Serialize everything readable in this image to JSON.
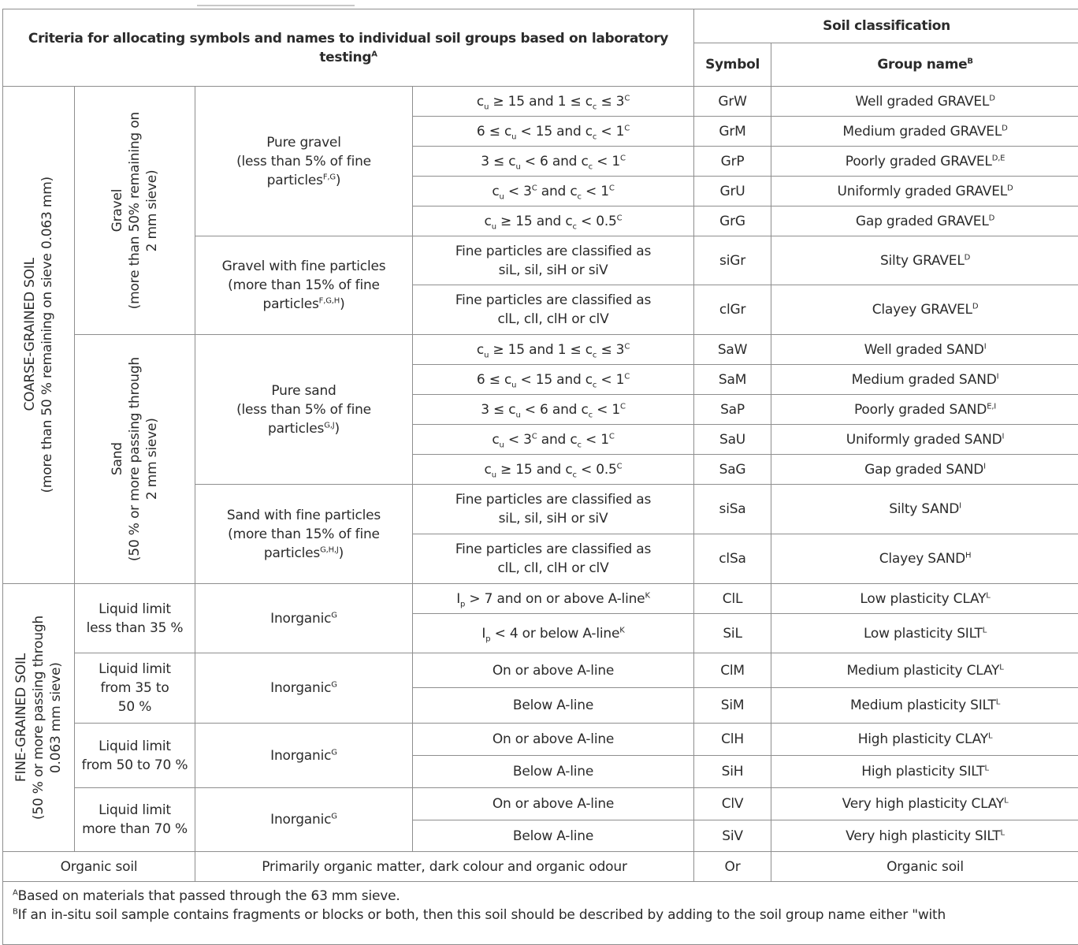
{
  "header": {
    "criteria": "Criteria for allocating symbols and names to individual soil groups based on laboratory testing",
    "criteria_sup": "A",
    "soil_classification": "Soil classification",
    "symbol": "Symbol",
    "group_name": "Group name",
    "group_name_sup": "B"
  },
  "coarse": {
    "label": "COARSE-GRAINED SOIL",
    "sub": "(more than 50 % remaining on sieve 0.063 mm)",
    "gravel": {
      "label": "Gravel",
      "sub1": "(more than 50% remaining on",
      "sub2": "2 mm sieve)",
      "pure": {
        "l1": "Pure gravel",
        "l2": "(less than 5% of fine",
        "l3": "particles",
        "sup": "F,G",
        "close": ")"
      },
      "fines": {
        "l1": "Gravel with fine particles",
        "l2": "(more than 15% of fine",
        "l3": "particles",
        "sup": "F,G,H",
        "close": ")"
      }
    },
    "sand": {
      "label": "Sand",
      "sub1": "(50 % or more passing through",
      "sub2": "2 mm sieve)",
      "pure": {
        "l1": "Pure sand",
        "l2": "(less than 5% of fine",
        "l3": "particles",
        "sup": "G,J",
        "close": ")"
      },
      "fines": {
        "l1": "Sand with fine particles",
        "l2": "(more than 15% of fine",
        "l3": "particles",
        "sup": "G,H,J",
        "close": ")"
      }
    }
  },
  "grading": {
    "r1": [
      "c",
      "u",
      " ≥ 15 and 1 ≤ c",
      "c",
      " ≤ 3",
      "C"
    ],
    "r2": [
      "6 ≤ c",
      "u",
      " < 15 and c",
      "c",
      " < 1",
      "C"
    ],
    "r3": [
      "3 ≤ c",
      "u",
      " < 6 and c",
      "c",
      " < 1",
      "C"
    ],
    "r4": [
      "c",
      "u",
      " < 3",
      "C",
      " and c",
      "c",
      " < 1",
      "C"
    ],
    "r5": [
      "c",
      "u",
      " ≥ 15 and c",
      "c",
      " < 0.5",
      "C"
    ]
  },
  "fines_criteria": {
    "silt_l1": "Fine particles are classified as",
    "silt_l2": "siL, sil, siH or siV",
    "clay_l1": "Fine particles are classified as",
    "clay_l2": "clL, clI, clH or clV"
  },
  "gravel_rows": [
    {
      "symbol": "GrW",
      "name": "Well graded GRAVEL",
      "sup": "D"
    },
    {
      "symbol": "GrM",
      "name": "Medium graded GRAVEL",
      "sup": "D"
    },
    {
      "symbol": "GrP",
      "name": "Poorly graded GRAVEL",
      "sup": "D,E"
    },
    {
      "symbol": "GrU",
      "name": "Uniformly graded GRAVEL",
      "sup": "D"
    },
    {
      "symbol": "GrG",
      "name": "Gap graded GRAVEL",
      "sup": "D"
    },
    {
      "symbol": "siGr",
      "name": "Silty GRAVEL",
      "sup": "D"
    },
    {
      "symbol": "clGr",
      "name": "Clayey GRAVEL",
      "sup": "D"
    }
  ],
  "sand_rows": [
    {
      "symbol": "SaW",
      "name": "Well graded SAND",
      "sup": "I"
    },
    {
      "symbol": "SaM",
      "name": "Medium graded SAND",
      "sup": "I"
    },
    {
      "symbol": "SaP",
      "name": "Poorly graded SAND",
      "sup": "E,I"
    },
    {
      "symbol": "SaU",
      "name": "Uniformly graded SAND",
      "sup": "I"
    },
    {
      "symbol": "SaG",
      "name": "Gap graded SAND",
      "sup": "I"
    },
    {
      "symbol": "siSa",
      "name": "Silty SAND",
      "sup": "I"
    },
    {
      "symbol": "clSa",
      "name": "Clayey SAND",
      "sup": "H"
    }
  ],
  "fine": {
    "label": "FINE-GRAINED SOIL",
    "sub1": "(50 % or more passing through",
    "sub2": "0.063 mm sieve)",
    "inorganic": "Inorganic",
    "inorganic_sup": "G",
    "groups": [
      {
        "limit_l1": "Liquid limit",
        "limit_l2": "less than 35 %",
        "rows": [
          {
            "crit_a": "I",
            "crit_sub": "p",
            "crit_b": " > 7 and on or above A-line",
            "crit_sup": "K",
            "symbol": "ClL",
            "name": "Low plasticity CLAY",
            "sup": "L"
          },
          {
            "crit_a": "I",
            "crit_sub": "p",
            "crit_b": " < 4 or below A-line",
            "crit_sup": "K",
            "symbol": "SiL",
            "name": "Low plasticity SILT",
            "sup": "L"
          }
        ]
      },
      {
        "limit_l1": "Liquid limit",
        "limit_l2": "from 35 to",
        "limit_l3": "50 %",
        "rows": [
          {
            "crit": "On or above A-line",
            "symbol": "ClM",
            "name": "Medium plasticity CLAY",
            "sup": "L"
          },
          {
            "crit": "Below A-line",
            "symbol": "SiM",
            "name": "Medium plasticity SILT",
            "sup": "L"
          }
        ]
      },
      {
        "limit_l1": "Liquid limit",
        "limit_l2": "from 50 to 70 %",
        "rows": [
          {
            "crit": "On or above A-line",
            "symbol": "ClH",
            "name": "High plasticity CLAY",
            "sup": "L"
          },
          {
            "crit": "Below A-line",
            "symbol": "SiH",
            "name": "High plasticity SILT",
            "sup": "L"
          }
        ]
      },
      {
        "limit_l1": "Liquid limit",
        "limit_l2": "more than 70 %",
        "rows": [
          {
            "crit": "On or above A-line",
            "symbol": "ClV",
            "name": "Very high plasticity CLAY",
            "sup": "L"
          },
          {
            "crit": "Below A-line",
            "symbol": "SiV",
            "name": "Very high plasticity SILT",
            "sup": "L"
          }
        ]
      }
    ]
  },
  "organic": {
    "label": "Organic soil",
    "criteria": "Primarily organic matter, dark colour and organic odour",
    "symbol": "Or",
    "name": "Organic soil"
  },
  "footnotes": {
    "a_mark": "A",
    "a_text": "Based on materials that passed through the 63 mm sieve.",
    "b_mark": "B",
    "b_text": "If an in-situ soil sample contains fragments or blocks or both, then this soil should be described by adding to the soil group name either \"with"
  }
}
